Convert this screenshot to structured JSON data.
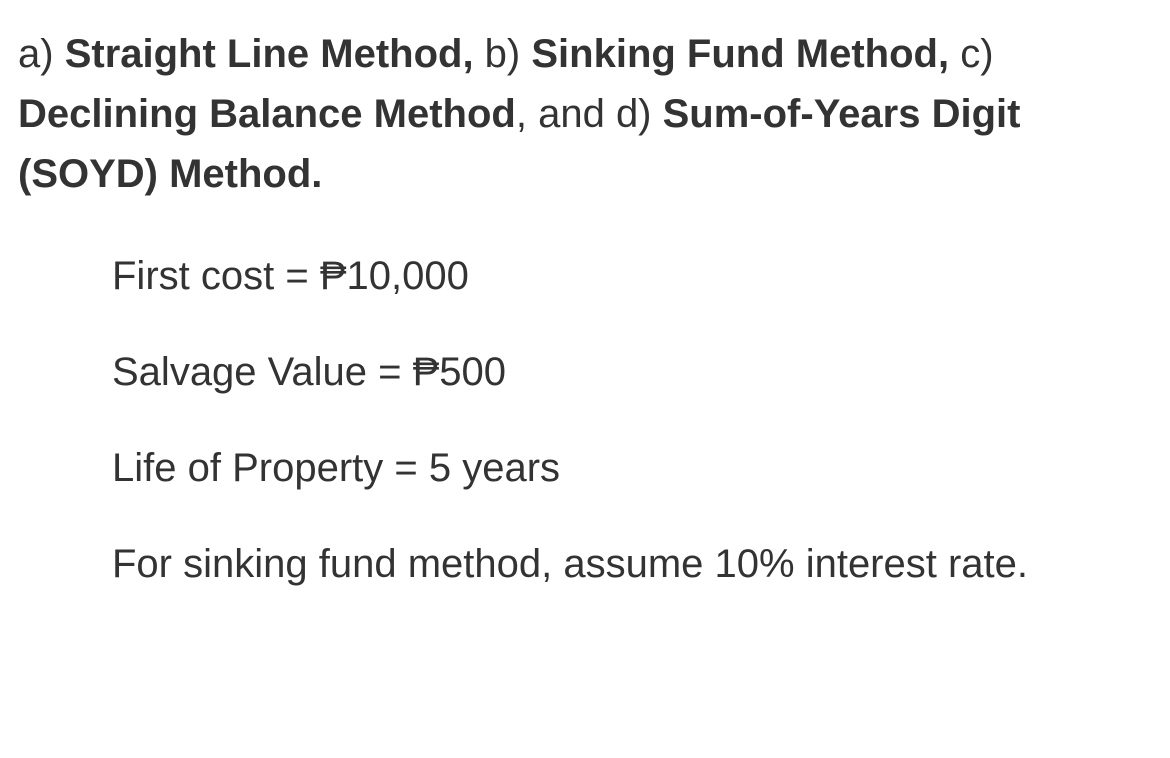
{
  "text_color": "#333333",
  "background_color": "#ffffff",
  "font_size": 40,
  "intro": {
    "a_prefix": "a) ",
    "a_bold": "Straight Line Method,",
    "b_prefix": " b) ",
    "b_bold": "Sinking Fund Method,",
    "c_prefix": " c) ",
    "c_bold": "Declining Balance Method",
    "and_prefix": ", and d) ",
    "d_bold": "Sum-of-Years Digit (SOYD) Method."
  },
  "data": {
    "first_cost": "First cost = ₱10,000",
    "salvage_value": "Salvage Value = ₱500",
    "life_property": "Life of Property = 5 years",
    "sinking_note": "For sinking fund method, assume 10% interest rate."
  }
}
